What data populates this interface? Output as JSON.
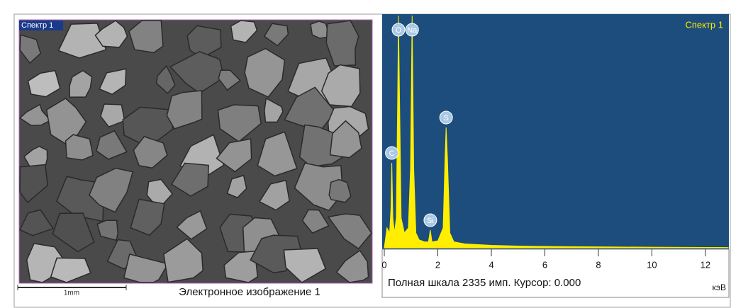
{
  "image_panel": {
    "label": "Спектр 1",
    "scale_bar": "1mm",
    "caption": "Электронное изображение 1"
  },
  "chart_data": {
    "type": "line",
    "title": "Спектр 1",
    "x": [
      0,
      0.1,
      0.2,
      0.25,
      0.28,
      0.32,
      0.38,
      0.45,
      0.5,
      0.53,
      0.57,
      0.63,
      0.75,
      0.9,
      0.98,
      1.04,
      1.1,
      1.18,
      1.3,
      1.5,
      1.65,
      1.72,
      1.78,
      2.0,
      2.2,
      2.27,
      2.31,
      2.36,
      2.45,
      2.6,
      3.0,
      4,
      5,
      6,
      7,
      8,
      10,
      12,
      12.85
    ],
    "values": [
      0,
      200,
      150,
      400,
      854,
      300,
      150,
      300,
      1500,
      2335,
      1500,
      300,
      150,
      200,
      800,
      2335,
      800,
      150,
      80,
      60,
      60,
      178,
      60,
      70,
      200,
      900,
      1210,
      900,
      150,
      60,
      40,
      25,
      18,
      14,
      12,
      10,
      6,
      4,
      3
    ],
    "color": "#ffee00",
    "xlim": [
      0,
      12.85
    ],
    "ylim": [
      0,
      2335
    ],
    "xticks": [
      0,
      2,
      4,
      6,
      8,
      10,
      12
    ],
    "x_label": "кэВ",
    "status": "Полная шкала 2335 имп. Курсор: 0.000",
    "peaks": [
      {
        "label": "C",
        "x": 0.28
      },
      {
        "label": "O",
        "x": 0.53
      },
      {
        "label": "Na",
        "x": 1.04
      },
      {
        "label": "Si",
        "x": 1.72
      },
      {
        "label": "S",
        "x": 2.31
      }
    ]
  }
}
